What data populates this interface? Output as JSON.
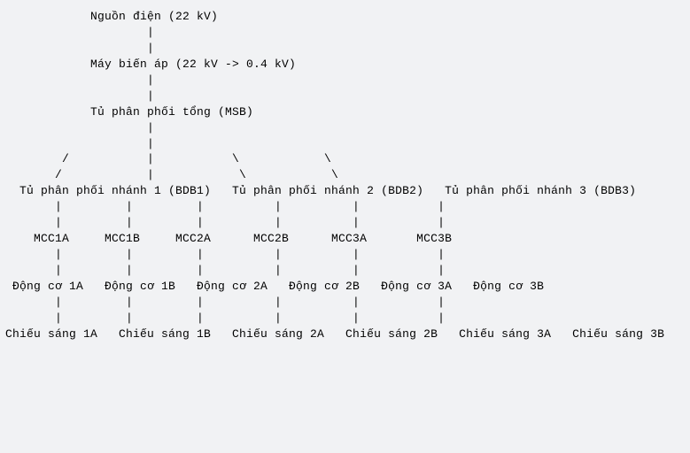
{
  "diagram": {
    "type": "tree",
    "background_color": "#f1f2f4",
    "text_color": "#000000",
    "font_family": "Courier New, monospace",
    "font_size_pt": 10,
    "lines": [
      "            Nguồn điện (22 kV)",
      "                    |",
      "                    |",
      "            Máy biến áp (22 kV -> 0.4 kV)",
      "                    |",
      "                    |",
      "            Tủ phân phối tổng (MSB)",
      "                    |",
      "                    |",
      "        /           |           \\            \\",
      "       /            |            \\            \\",
      "  Tủ phân phối nhánh 1 (BDB1)   Tủ phân phối nhánh 2 (BDB2)   Tủ phân phối nhánh 3 (BDB3)",
      "       |         |         |          |          |           |",
      "       |         |         |          |          |           |",
      "    MCC1A     MCC1B     MCC2A      MCC2B      MCC3A       MCC3B",
      "       |         |         |          |          |           |",
      "       |         |         |          |          |           |",
      " Động cơ 1A   Động cơ 1B   Động cơ 2A   Động cơ 2B   Động cơ 3A   Động cơ 3B",
      "       |         |         |          |          |           |",
      "       |         |         |          |          |           |",
      "Chiếu sáng 1A   Chiếu sáng 1B   Chiếu sáng 2A   Chiếu sáng 2B   Chiếu sáng 3A   Chiếu sáng 3B"
    ],
    "nodes": [
      {
        "id": "source",
        "label": "Nguồn điện (22 kV)",
        "level": 0
      },
      {
        "id": "transformer",
        "label": "Máy biến áp (22 kV -> 0.4 kV)",
        "level": 1
      },
      {
        "id": "msb",
        "label": "Tủ phân phối tổng (MSB)",
        "level": 2
      },
      {
        "id": "bdb1",
        "label": "Tủ phân phối nhánh 1 (BDB1)",
        "level": 3
      },
      {
        "id": "bdb2",
        "label": "Tủ phân phối nhánh 2 (BDB2)",
        "level": 3
      },
      {
        "id": "bdb3",
        "label": "Tủ phân phối nhánh 3 (BDB3)",
        "level": 3
      },
      {
        "id": "mcc1a",
        "label": "MCC1A",
        "level": 4
      },
      {
        "id": "mcc1b",
        "label": "MCC1B",
        "level": 4
      },
      {
        "id": "mcc2a",
        "label": "MCC2A",
        "level": 4
      },
      {
        "id": "mcc2b",
        "label": "MCC2B",
        "level": 4
      },
      {
        "id": "mcc3a",
        "label": "MCC3A",
        "level": 4
      },
      {
        "id": "mcc3b",
        "label": "MCC3B",
        "level": 4
      },
      {
        "id": "motor1a",
        "label": "Động cơ 1A",
        "level": 5
      },
      {
        "id": "motor1b",
        "label": "Động cơ 1B",
        "level": 5
      },
      {
        "id": "motor2a",
        "label": "Động cơ 2A",
        "level": 5
      },
      {
        "id": "motor2b",
        "label": "Động cơ 2B",
        "level": 5
      },
      {
        "id": "motor3a",
        "label": "Động cơ 3A",
        "level": 5
      },
      {
        "id": "motor3b",
        "label": "Động cơ 3B",
        "level": 5
      },
      {
        "id": "light1a",
        "label": "Chiếu sáng 1A",
        "level": 6
      },
      {
        "id": "light1b",
        "label": "Chiếu sáng 1B",
        "level": 6
      },
      {
        "id": "light2a",
        "label": "Chiếu sáng 2A",
        "level": 6
      },
      {
        "id": "light2b",
        "label": "Chiếu sáng 2B",
        "level": 6
      },
      {
        "id": "light3a",
        "label": "Chiếu sáng 3A",
        "level": 6
      },
      {
        "id": "light3b",
        "label": "Chiếu sáng 3B",
        "level": 6
      }
    ],
    "edges": [
      [
        "source",
        "transformer"
      ],
      [
        "transformer",
        "msb"
      ],
      [
        "msb",
        "bdb1"
      ],
      [
        "msb",
        "bdb2"
      ],
      [
        "msb",
        "bdb3"
      ],
      [
        "bdb1",
        "mcc1a"
      ],
      [
        "bdb1",
        "mcc1b"
      ],
      [
        "bdb2",
        "mcc2a"
      ],
      [
        "bdb2",
        "mcc2b"
      ],
      [
        "bdb3",
        "mcc3a"
      ],
      [
        "bdb3",
        "mcc3b"
      ],
      [
        "mcc1a",
        "motor1a"
      ],
      [
        "mcc1b",
        "motor1b"
      ],
      [
        "mcc2a",
        "motor2a"
      ],
      [
        "mcc2b",
        "motor2b"
      ],
      [
        "mcc3a",
        "motor3a"
      ],
      [
        "mcc3b",
        "motor3b"
      ],
      [
        "motor1a",
        "light1a"
      ],
      [
        "motor1b",
        "light1b"
      ],
      [
        "motor2a",
        "light2a"
      ],
      [
        "motor2b",
        "light2b"
      ],
      [
        "motor3a",
        "light3a"
      ],
      [
        "motor3b",
        "light3b"
      ]
    ]
  }
}
